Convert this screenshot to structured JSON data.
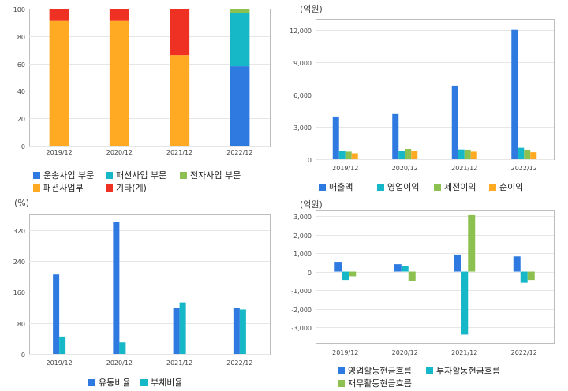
{
  "colors": {
    "blue": "#2e7ae0",
    "cyan": "#16b8c8",
    "green": "#8cc152",
    "orange": "#ffaa22",
    "red": "#ef3124",
    "gridline": "#e6e6e6",
    "frame": "#bdbdbd",
    "axis_text": "#444444"
  },
  "chart_data": [
    {
      "id": "business-segments",
      "type": "bar",
      "stacked": true,
      "categories": [
        "2019/12",
        "2020/12",
        "2021/12",
        "2022/12"
      ],
      "yticks": [
        0,
        20,
        40,
        60,
        80,
        100
      ],
      "ylim": [
        0,
        100
      ],
      "unit": "",
      "series": [
        {
          "name": "운송사업 부문",
          "color": "blue",
          "values": [
            0,
            0,
            0,
            58
          ]
        },
        {
          "name": "패션사업 부문",
          "color": "cyan",
          "values": [
            0,
            0,
            0,
            39
          ]
        },
        {
          "name": "전자사업 부문",
          "color": "green",
          "values": [
            0,
            0,
            0,
            3
          ]
        },
        {
          "name": "패션사업부",
          "color": "orange",
          "values": [
            91,
            91,
            66,
            0
          ]
        },
        {
          "name": "기타(계)",
          "color": "red",
          "values": [
            9,
            9,
            34,
            0
          ]
        }
      ]
    },
    {
      "id": "income",
      "type": "bar",
      "stacked": false,
      "categories": [
        "2019/12",
        "2020/12",
        "2021/12",
        "2022/12"
      ],
      "yticks": [
        0,
        3000,
        6000,
        9000,
        12000
      ],
      "ytick_labels": [
        "0",
        "3,000",
        "6,000",
        "9,000",
        "12,000"
      ],
      "ylim": [
        0,
        13000
      ],
      "unit": "(억원)",
      "series": [
        {
          "name": "매출액",
          "color": "blue",
          "values": [
            3950,
            4250,
            6800,
            12000
          ]
        },
        {
          "name": "영업이익",
          "color": "cyan",
          "values": [
            750,
            800,
            900,
            1050
          ]
        },
        {
          "name": "세전이익",
          "color": "green",
          "values": [
            700,
            950,
            880,
            880
          ]
        },
        {
          "name": "순이익",
          "color": "orange",
          "values": [
            550,
            750,
            700,
            650
          ]
        }
      ]
    },
    {
      "id": "ratios",
      "type": "bar",
      "stacked": false,
      "categories": [
        "2019/12",
        "2020/12",
        "2021/12",
        "2022/12"
      ],
      "yticks": [
        0,
        80,
        160,
        240,
        320
      ],
      "ylim": [
        0,
        360
      ],
      "unit": "(%)",
      "series": [
        {
          "name": "유동비율",
          "color": "blue",
          "values": [
            205,
            340,
            118,
            118
          ]
        },
        {
          "name": "부채비율",
          "color": "cyan",
          "values": [
            45,
            30,
            133,
            115
          ]
        }
      ]
    },
    {
      "id": "cash-flow",
      "type": "bar",
      "stacked": false,
      "categories": [
        "2019/12",
        "2020/12",
        "2021/12",
        "2022/12"
      ],
      "yticks": [
        -3000,
        -2000,
        -1000,
        0,
        1000,
        2000,
        3000
      ],
      "ytick_labels": [
        "-3,000",
        "-2,000",
        "-1,000",
        "0",
        "1,000",
        "2,000",
        "3,000"
      ],
      "ylim": [
        -3850,
        3300
      ],
      "unit": "(억원)",
      "series": [
        {
          "name": "영업활동현금흐름",
          "color": "blue",
          "values": [
            530,
            400,
            920,
            820
          ]
        },
        {
          "name": "투자활동현금흐름",
          "color": "cyan",
          "values": [
            -450,
            300,
            -3400,
            -600
          ]
        },
        {
          "name": "재무활동현금흐름",
          "color": "green",
          "values": [
            -250,
            -500,
            3050,
            -450
          ]
        }
      ]
    }
  ]
}
